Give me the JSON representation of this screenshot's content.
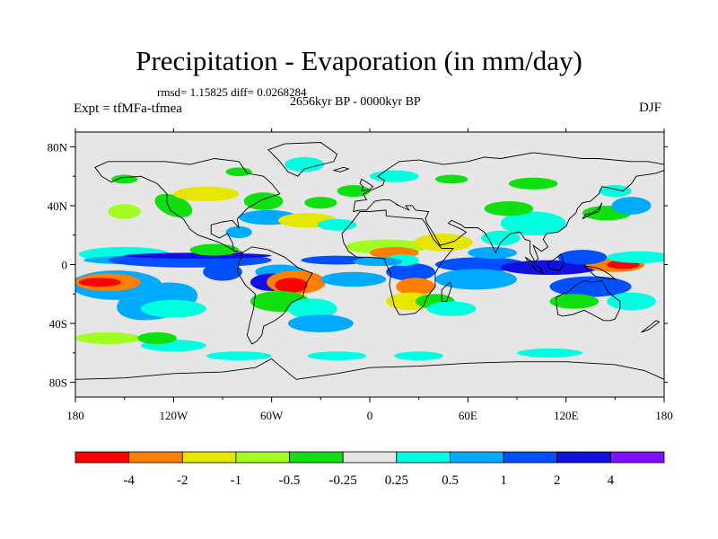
{
  "title": "Precipitation - Evaporation (in mm/day)",
  "stats_text": "rmsd= 1.15825 diff= 0.0268284",
  "period": "2656kyr BP - 0000kyr BP",
  "experiment": "Expt = tfMFa-tfmea",
  "season": "DJF",
  "map": {
    "lat_ticks": [
      "80N",
      "40N",
      "0",
      "40S",
      "80S"
    ],
    "lon_ticks": [
      "180",
      "120W",
      "60W",
      "0",
      "60E",
      "120E",
      "180"
    ],
    "background_color": "#e6e6e6",
    "coast_color": "#000000"
  },
  "colorbar": {
    "colors": [
      "#ff0000",
      "#ff8000",
      "#e6e600",
      "#a0ff20",
      "#10e010",
      "#e6e6e6",
      "#00ffe0",
      "#00aaff",
      "#0050ff",
      "#1010e0",
      "#8010ff"
    ],
    "labels": [
      "-4",
      "-2",
      "-1",
      "-0.5",
      "-0.25",
      "0.25",
      "0.5",
      "1",
      "2",
      "4"
    ]
  }
}
